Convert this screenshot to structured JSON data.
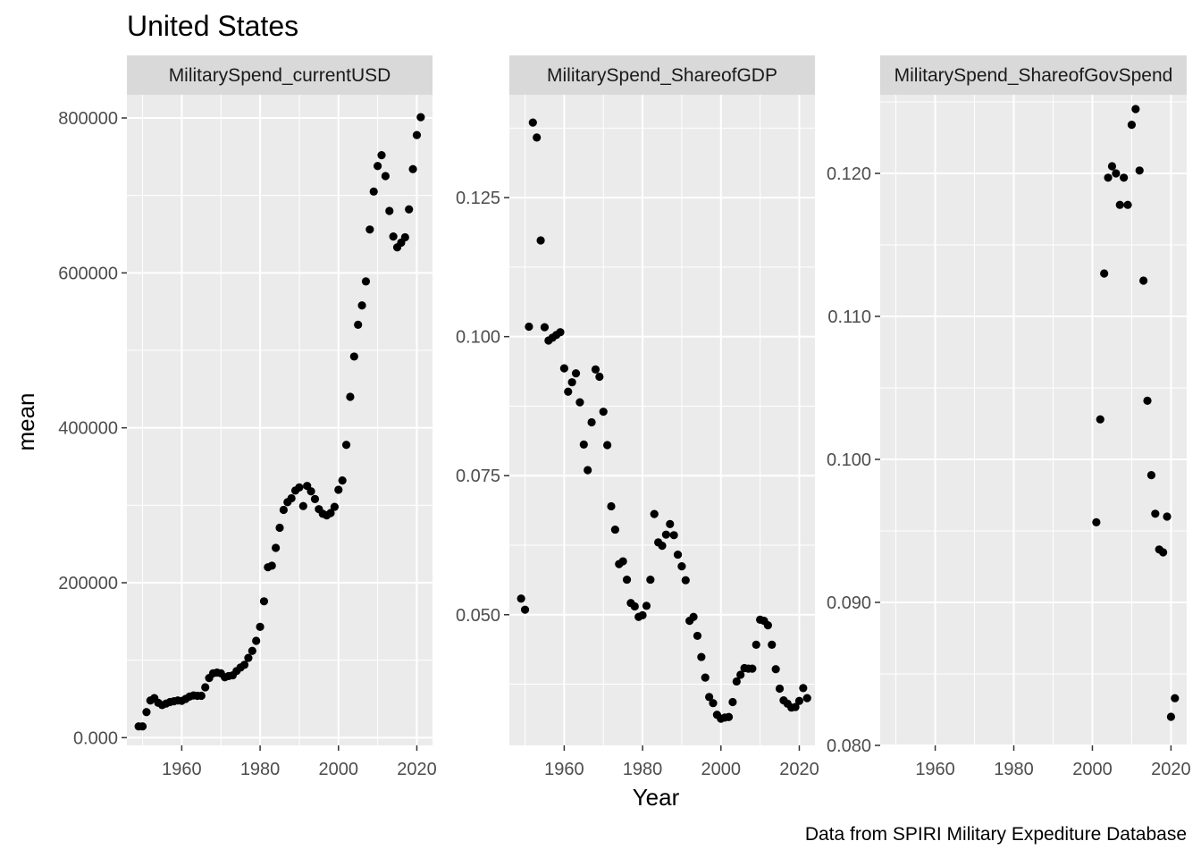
{
  "chart_data": {
    "type": "scatter",
    "title": "United States",
    "xlabel": "Year",
    "ylabel": "mean",
    "caption": "Data from SPIRI Military Expediture Database",
    "facets": [
      {
        "name": "MilitarySpend_currentUSD",
        "xlim": [
          1946,
          2024
        ],
        "xticks": [
          1960,
          1980,
          2000,
          2020
        ],
        "ylim": [
          -10000,
          830000
        ],
        "yticks": [
          0,
          200000,
          400000,
          600000,
          800000
        ],
        "points": [
          [
            1949,
            14500
          ],
          [
            1950,
            14500
          ],
          [
            1951,
            33000
          ],
          [
            1952,
            48000
          ],
          [
            1953,
            51000
          ],
          [
            1954,
            45000
          ],
          [
            1955,
            42000
          ],
          [
            1956,
            44000
          ],
          [
            1957,
            46000
          ],
          [
            1958,
            47000
          ],
          [
            1959,
            48000
          ],
          [
            1960,
            47500
          ],
          [
            1961,
            50000
          ],
          [
            1962,
            53000
          ],
          [
            1963,
            54500
          ],
          [
            1964,
            54000
          ],
          [
            1965,
            54000
          ],
          [
            1966,
            65000
          ],
          [
            1967,
            77000
          ],
          [
            1968,
            83000
          ],
          [
            1969,
            84000
          ],
          [
            1970,
            83000
          ],
          [
            1971,
            78000
          ],
          [
            1972,
            79500
          ],
          [
            1973,
            80500
          ],
          [
            1974,
            86000
          ],
          [
            1975,
            90500
          ],
          [
            1976,
            94000
          ],
          [
            1977,
            103000
          ],
          [
            1978,
            112000
          ],
          [
            1979,
            125000
          ],
          [
            1980,
            143000
          ],
          [
            1981,
            176000
          ],
          [
            1982,
            220000
          ],
          [
            1983,
            222000
          ],
          [
            1984,
            245000
          ],
          [
            1985,
            271000
          ],
          [
            1986,
            294000
          ],
          [
            1987,
            304000
          ],
          [
            1988,
            309000
          ],
          [
            1989,
            319000
          ],
          [
            1990,
            323000
          ],
          [
            1991,
            299000
          ],
          [
            1992,
            325000
          ],
          [
            1993,
            318000
          ],
          [
            1994,
            308000
          ],
          [
            1995,
            295000
          ],
          [
            1996,
            289000
          ],
          [
            1997,
            287000
          ],
          [
            1998,
            290000
          ],
          [
            1999,
            298000
          ],
          [
            2000,
            320000
          ],
          [
            2001,
            332000
          ],
          [
            2002,
            378000
          ],
          [
            2003,
            440000
          ],
          [
            2004,
            492000
          ],
          [
            2005,
            533000
          ],
          [
            2006,
            558000
          ],
          [
            2007,
            589000
          ],
          [
            2008,
            656000
          ],
          [
            2009,
            705000
          ],
          [
            2010,
            738000
          ],
          [
            2011,
            752000
          ],
          [
            2012,
            725000
          ],
          [
            2013,
            680000
          ],
          [
            2014,
            647000
          ],
          [
            2015,
            633000
          ],
          [
            2016,
            639000
          ],
          [
            2017,
            646000
          ],
          [
            2018,
            682000
          ],
          [
            2019,
            734000
          ],
          [
            2020,
            778000
          ],
          [
            2021,
            801000
          ]
        ]
      },
      {
        "name": "MilitarySpend_ShareofGDP",
        "xlim": [
          1946,
          2024
        ],
        "xticks": [
          1960,
          1980,
          2000,
          2020
        ],
        "ylim": [
          0.0265,
          0.1435
        ],
        "yticks": [
          0.05,
          0.075,
          0.1,
          0.125
        ],
        "points": [
          [
            1949,
            0.0529
          ],
          [
            1950,
            0.0509
          ],
          [
            1951,
            0.1018
          ],
          [
            1952,
            0.1385
          ],
          [
            1953,
            0.1358
          ],
          [
            1954,
            0.1173
          ],
          [
            1955,
            0.1017
          ],
          [
            1956,
            0.0993
          ],
          [
            1957,
            0.0998
          ],
          [
            1958,
            0.1003
          ],
          [
            1959,
            0.1008
          ],
          [
            1960,
            0.0943
          ],
          [
            1961,
            0.0901
          ],
          [
            1962,
            0.0918
          ],
          [
            1963,
            0.0934
          ],
          [
            1964,
            0.0882
          ],
          [
            1965,
            0.0806
          ],
          [
            1966,
            0.076
          ],
          [
            1967,
            0.0846
          ],
          [
            1968,
            0.0941
          ],
          [
            1969,
            0.0928
          ],
          [
            1970,
            0.0865
          ],
          [
            1971,
            0.0805
          ],
          [
            1972,
            0.0695
          ],
          [
            1973,
            0.0653
          ],
          [
            1974,
            0.0591
          ],
          [
            1975,
            0.0596
          ],
          [
            1976,
            0.0563
          ],
          [
            1977,
            0.0521
          ],
          [
            1978,
            0.0515
          ],
          [
            1979,
            0.0496
          ],
          [
            1980,
            0.0499
          ],
          [
            1981,
            0.0516
          ],
          [
            1982,
            0.0563
          ],
          [
            1983,
            0.0681
          ],
          [
            1984,
            0.063
          ],
          [
            1985,
            0.0624
          ],
          [
            1986,
            0.0644
          ],
          [
            1987,
            0.0663
          ],
          [
            1988,
            0.0643
          ],
          [
            1989,
            0.0608
          ],
          [
            1990,
            0.0587
          ],
          [
            1991,
            0.0562
          ],
          [
            1992,
            0.0489
          ],
          [
            1993,
            0.0496
          ],
          [
            1994,
            0.0462
          ],
          [
            1995,
            0.0424
          ],
          [
            1996,
            0.0387
          ],
          [
            1997,
            0.0352
          ],
          [
            1998,
            0.0341
          ],
          [
            1999,
            0.032
          ],
          [
            2000,
            0.0313
          ],
          [
            2001,
            0.0315
          ],
          [
            2002,
            0.0316
          ],
          [
            2003,
            0.0343
          ],
          [
            2004,
            0.038
          ],
          [
            2005,
            0.0392
          ],
          [
            2006,
            0.0404
          ],
          [
            2007,
            0.0403
          ],
          [
            2008,
            0.0403
          ],
          [
            2009,
            0.0446
          ],
          [
            2010,
            0.0491
          ],
          [
            2011,
            0.0489
          ],
          [
            2012,
            0.0481
          ],
          [
            2013,
            0.0446
          ],
          [
            2014,
            0.0402
          ],
          [
            2015,
            0.0367
          ],
          [
            2016,
            0.0346
          ],
          [
            2017,
            0.034
          ],
          [
            2018,
            0.0333
          ],
          [
            2019,
            0.0334
          ],
          [
            2020,
            0.0345
          ],
          [
            2021,
            0.0368
          ],
          [
            2022,
            0.035
          ]
        ]
      },
      {
        "name": "MilitarySpend_ShareofGovSpend",
        "xlim": [
          1946,
          2024
        ],
        "xticks": [
          1960,
          1980,
          2000,
          2020
        ],
        "ylim": [
          0.08,
          0.1255
        ],
        "yticks": [
          0.08,
          0.09,
          0.1,
          0.11,
          0.12
        ],
        "points": [
          [
            2001,
            0.0956
          ],
          [
            2002,
            0.1028
          ],
          [
            2003,
            0.113
          ],
          [
            2004,
            0.1197
          ],
          [
            2005,
            0.1205
          ],
          [
            2006,
            0.12
          ],
          [
            2007,
            0.1178
          ],
          [
            2008,
            0.1197
          ],
          [
            2009,
            0.1178
          ],
          [
            2010,
            0.1234
          ],
          [
            2011,
            0.1245
          ],
          [
            2012,
            0.1202
          ],
          [
            2013,
            0.1125
          ],
          [
            2014,
            0.1041
          ],
          [
            2015,
            0.0989
          ],
          [
            2016,
            0.0962
          ],
          [
            2017,
            0.0937
          ],
          [
            2018,
            0.0935
          ],
          [
            2019,
            0.096
          ],
          [
            2020,
            0.082
          ],
          [
            2021,
            0.0833
          ]
        ]
      }
    ]
  }
}
